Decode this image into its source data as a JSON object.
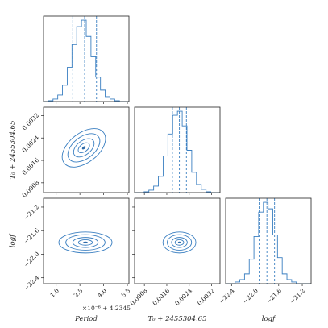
{
  "chart_data": {
    "type": "corner",
    "colors": {
      "primary": "#3a7fc1",
      "fill_levels": [
        "#d9e8f5",
        "#a9c9e6",
        "#6fa3d2",
        "#3a7fc1"
      ]
    },
    "parameters": [
      {
        "key": "period",
        "label": "Period",
        "offset_label": "×10⁻⁶ + 4.2345",
        "range": [
          0.2,
          5.6
        ],
        "ticks": [
          1.0,
          2.5,
          4.0,
          5.5
        ],
        "tick_labels": [
          "1.0",
          "2.5",
          "4.0",
          "5.5"
        ],
        "quantiles": [
          2.05,
          2.8,
          3.55
        ]
      },
      {
        "key": "t0",
        "label": "T₀ + 2455304.65",
        "offset_label": "",
        "range": [
          0.00045,
          0.0035
        ],
        "ticks": [
          0.0008,
          0.0016,
          0.0024,
          0.0032
        ],
        "tick_labels": [
          "0.0008",
          "0.0016",
          "0.0024",
          "0.0032"
        ],
        "quantiles": [
          0.0018,
          0.00205,
          0.0023
        ]
      },
      {
        "key": "logf",
        "label": "logf",
        "offset_label": "",
        "range": [
          -22.5,
          -21.05
        ],
        "ticks": [
          -22.4,
          -22.0,
          -21.6,
          -21.2
        ],
        "tick_labels": [
          "−22.4",
          "−22.0",
          "−21.6",
          "−21.2"
        ],
        "quantiles": [
          -21.92,
          -21.8,
          -21.67
        ]
      }
    ],
    "histograms": [
      {
        "param": "period",
        "bin_edges": [
          0.2,
          0.5,
          0.8,
          1.1,
          1.4,
          1.7,
          2.0,
          2.3,
          2.6,
          2.9,
          3.2,
          3.5,
          3.8,
          4.1,
          4.4,
          4.7,
          5.0,
          5.3,
          5.6
        ],
        "counts": [
          0,
          1,
          3,
          8,
          20,
          42,
          70,
          92,
          100,
          80,
          55,
          30,
          14,
          6,
          3,
          1,
          0,
          0
        ]
      },
      {
        "param": "t0",
        "bin_edges": [
          0.00045,
          0.00062,
          0.00079,
          0.00096,
          0.00113,
          0.0013,
          0.00147,
          0.00164,
          0.00181,
          0.00198,
          0.00215,
          0.00232,
          0.00249,
          0.00266,
          0.00283,
          0.003,
          0.00317,
          0.00334,
          0.0035
        ],
        "counts": [
          0,
          0,
          1,
          3,
          8,
          20,
          45,
          72,
          95,
          100,
          82,
          52,
          25,
          10,
          4,
          1,
          0,
          0
        ]
      },
      {
        "param": "logf",
        "bin_edges": [
          -22.5,
          -22.42,
          -22.34,
          -22.26,
          -22.18,
          -22.1,
          -22.02,
          -21.94,
          -21.86,
          -21.78,
          -21.7,
          -21.62,
          -21.54,
          -21.46,
          -21.38,
          -21.3,
          -21.22,
          -21.14,
          -21.05
        ],
        "counts": [
          0,
          0,
          2,
          5,
          12,
          30,
          58,
          88,
          100,
          92,
          60,
          32,
          12,
          5,
          2,
          0,
          0,
          0
        ]
      }
    ],
    "contours_2d": [
      {
        "x": "period",
        "y": "t0",
        "center": [
          2.75,
          0.00205
        ],
        "sigma_x": 0.75,
        "sigma_y": 0.00025,
        "angle_deg": -38
      },
      {
        "x": "period",
        "y": "logf",
        "center": [
          2.85,
          -21.8
        ],
        "sigma_x": 0.8,
        "sigma_y": 0.085,
        "angle_deg": 0
      },
      {
        "x": "t0",
        "y": "logf",
        "center": [
          0.00205,
          -21.8
        ],
        "sigma_x": 0.00028,
        "sigma_y": 0.085,
        "angle_deg": 0
      }
    ],
    "contour_levels_sigma": [
      0.55,
      1.0,
      1.55,
      2.1
    ],
    "grid": false,
    "legend": "none"
  }
}
